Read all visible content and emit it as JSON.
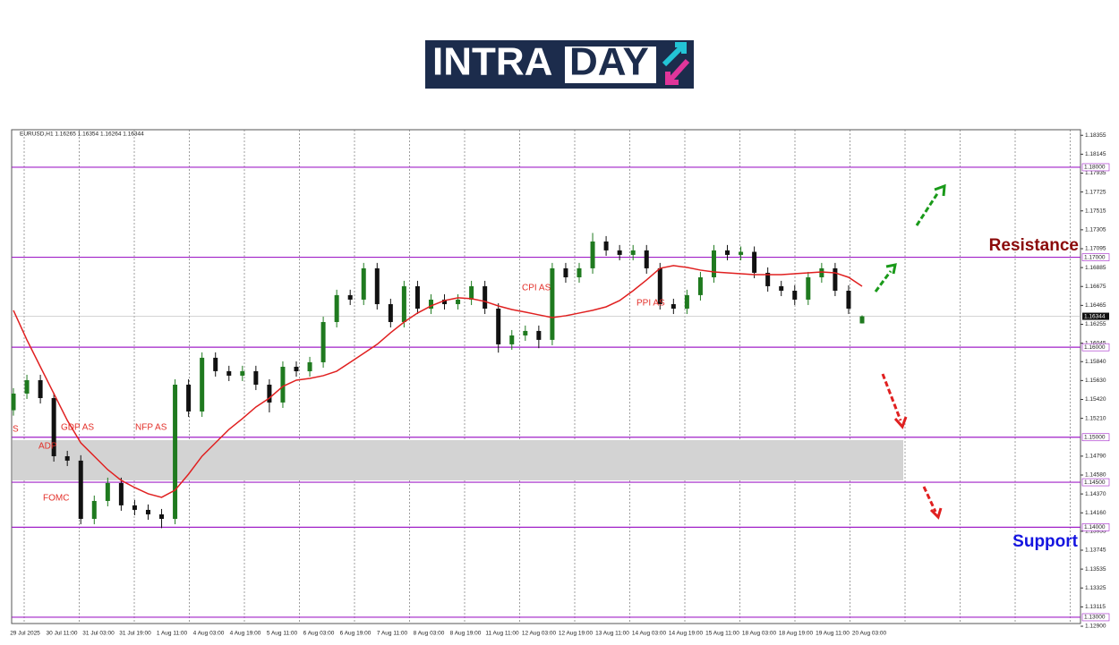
{
  "logo": {
    "left": "INTRA",
    "right": "DAY"
  },
  "chart_data": {
    "type": "candlestick",
    "header": "EURUSD,H1  1.16265 1.16354 1.16264 1.16344",
    "ylim": [
      1.1293,
      1.18417
    ],
    "yticks": [
      1.18355,
      1.18145,
      1.17935,
      1.17725,
      1.17515,
      1.17305,
      1.17095,
      1.16885,
      1.16675,
      1.16465,
      1.16255,
      1.16045,
      {
        "value": 1.1584,
        "label": "1.15840"
      },
      {
        "value": 1.1563,
        "label": "1.15630"
      },
      {
        "value": 1.1542,
        "label": "1.15420"
      },
      {
        "value": 1.1521,
        "label": "1.15210"
      },
      {
        "value": 1.1479,
        "label": "1.14790"
      },
      {
        "value": 1.1458,
        "label": "1.14580"
      },
      {
        "value": 1.1437,
        "label": "1.14370"
      },
      {
        "value": 1.1416,
        "label": "1.14160"
      },
      1.13955,
      1.13745,
      1.13535,
      1.13325,
      1.13115,
      {
        "value": 1.129,
        "label": "1.12900"
      }
    ],
    "levels": [
      {
        "value": 1.18,
        "label": "1.18000"
      },
      {
        "value": 1.17,
        "label": "1.17000"
      },
      {
        "value": 1.16,
        "label": "1.16000"
      },
      {
        "value": 1.15,
        "label": "1.15000"
      },
      {
        "value": 1.145,
        "label": "1.14500"
      },
      {
        "value": 1.14,
        "label": "1.14000"
      },
      {
        "value": 1.13,
        "label": "1.13000"
      }
    ],
    "level_color": "#a020c8",
    "current_price": 1.16344,
    "zone": [
      1.14521,
      1.14968
    ],
    "bull_color": "#1f7a1f",
    "bear_color": "#111111",
    "ohlc": [
      [
        1.153,
        1.15545,
        1.1524,
        1.15485
      ],
      [
        1.15485,
        1.15694,
        1.15425,
        1.15634
      ],
      [
        1.15634,
        1.15694,
        1.15375,
        1.15435
      ],
      [
        1.15435,
        1.15495,
        1.14729,
        1.14789
      ],
      [
        1.14789,
        1.14849,
        1.1468,
        1.1474
      ],
      [
        1.1474,
        1.148,
        1.14033,
        1.14093
      ],
      [
        1.14093,
        1.14352,
        1.14033,
        1.14292
      ],
      [
        1.14292,
        1.14551,
        1.14232,
        1.14491
      ],
      [
        1.14491,
        1.14551,
        1.14183,
        1.14243
      ],
      [
        1.14243,
        1.14303,
        1.14133,
        1.14193
      ],
      [
        1.14193,
        1.14253,
        1.14083,
        1.14143
      ],
      [
        1.14143,
        1.14203,
        1.1399,
        1.14093
      ],
      [
        1.14093,
        1.15644,
        1.14033,
        1.15584
      ],
      [
        1.15584,
        1.15644,
        1.15226,
        1.15286
      ],
      [
        1.15286,
        1.15943,
        1.15226,
        1.15883
      ],
      [
        1.15883,
        1.15943,
        1.15674,
        1.15734
      ],
      [
        1.15734,
        1.15794,
        1.15624,
        1.15684
      ],
      [
        1.15684,
        1.15794,
        1.15624,
        1.15734
      ],
      [
        1.15734,
        1.15794,
        1.15524,
        1.15584
      ],
      [
        1.15584,
        1.15644,
        1.15276,
        1.15386
      ],
      [
        1.15386,
        1.15843,
        1.15326,
        1.15783
      ],
      [
        1.15783,
        1.15843,
        1.15673,
        1.15733
      ],
      [
        1.15733,
        1.15893,
        1.15673,
        1.15833
      ],
      [
        1.15833,
        1.1634,
        1.15773,
        1.1628
      ],
      [
        1.1628,
        1.16639,
        1.1622,
        1.16579
      ],
      [
        1.16579,
        1.16639,
        1.16469,
        1.16529
      ],
      [
        1.16529,
        1.16937,
        1.16469,
        1.16877
      ],
      [
        1.16877,
        1.16937,
        1.16419,
        1.16479
      ],
      [
        1.16479,
        1.16539,
        1.1622,
        1.1628
      ],
      [
        1.1628,
        1.16738,
        1.1622,
        1.16678
      ],
      [
        1.16678,
        1.16738,
        1.16369,
        1.16429
      ],
      [
        1.16429,
        1.16589,
        1.16369,
        1.16529
      ],
      [
        1.16529,
        1.16589,
        1.16419,
        1.16479
      ],
      [
        1.16479,
        1.16589,
        1.16419,
        1.16529
      ],
      [
        1.16529,
        1.16738,
        1.16469,
        1.16678
      ],
      [
        1.16678,
        1.16738,
        1.16369,
        1.16429
      ],
      [
        1.16429,
        1.16489,
        1.1594,
        1.16032
      ],
      [
        1.16032,
        1.16191,
        1.15972,
        1.16131
      ],
      [
        1.16131,
        1.16241,
        1.16071,
        1.16181
      ],
      [
        1.16181,
        1.16241,
        1.1599,
        1.16082
      ],
      [
        1.16082,
        1.16937,
        1.16022,
        1.16877
      ],
      [
        1.16877,
        1.16937,
        1.16717,
        1.16777
      ],
      [
        1.16777,
        1.16937,
        1.16717,
        1.16877
      ],
      [
        1.16877,
        1.1727,
        1.16817,
        1.17175
      ],
      [
        1.17175,
        1.17235,
        1.17016,
        1.17076
      ],
      [
        1.17076,
        1.17136,
        1.16966,
        1.17026
      ],
      [
        1.17026,
        1.17136,
        1.16966,
        1.17076
      ],
      [
        1.17076,
        1.17136,
        1.16817,
        1.16877
      ],
      [
        1.16877,
        1.16937,
        1.16419,
        1.16479
      ],
      [
        1.16479,
        1.16539,
        1.16369,
        1.16429
      ],
      [
        1.16429,
        1.16639,
        1.16369,
        1.16579
      ],
      [
        1.16579,
        1.16837,
        1.16519,
        1.16777
      ],
      [
        1.16777,
        1.17136,
        1.16717,
        1.17076
      ],
      [
        1.17076,
        1.17136,
        1.16966,
        1.17026
      ],
      [
        1.17026,
        1.1712,
        1.16966,
        1.1706
      ],
      [
        1.1706,
        1.1712,
        1.16767,
        1.16827
      ],
      [
        1.16827,
        1.16887,
        1.16618,
        1.16678
      ],
      [
        1.16678,
        1.16738,
        1.16568,
        1.16628
      ],
      [
        1.16628,
        1.16688,
        1.16469,
        1.16529
      ],
      [
        1.16529,
        1.16837,
        1.16469,
        1.16777
      ],
      [
        1.16777,
        1.16937,
        1.16717,
        1.16877
      ],
      [
        1.16877,
        1.16937,
        1.16568,
        1.16628
      ],
      [
        1.16628,
        1.16688,
        1.16369,
        1.16429
      ],
      [
        1.16265,
        1.16354,
        1.16264,
        1.16344
      ]
    ],
    "ma": {
      "color": "#e02020",
      "values": [
        1.1641,
        1.16082,
        1.15783,
        1.15485,
        1.15187,
        1.14938,
        1.14789,
        1.1464,
        1.14521,
        1.14441,
        1.14372,
        1.14332,
        1.14412,
        1.1459,
        1.14789,
        1.14938,
        1.15087,
        1.15207,
        1.15336,
        1.15435,
        1.15565,
        1.15634,
        1.15654,
        1.15684,
        1.15734,
        1.15833,
        1.15932,
        1.16032,
        1.16161,
        1.1628,
        1.1638,
        1.16459,
        1.16519,
        1.16549,
        1.16539,
        1.16509,
        1.16459,
        1.16419,
        1.1639,
        1.1636,
        1.1633,
        1.1635,
        1.1638,
        1.1641,
        1.16449,
        1.16519,
        1.16628,
        1.16748,
        1.16877,
        1.16907,
        1.16887,
        1.16857,
        1.16837,
        1.16827,
        1.16817,
        1.16807,
        1.16807,
        1.16807,
        1.16817,
        1.16827,
        1.16837,
        1.16827,
        1.16777,
        1.16678
      ]
    },
    "xtick_labels": [
      "29 Jul 2025",
      "30 Jul 11:00",
      "31 Jul 03:00",
      "31 Jul 19:00",
      "1 Aug 11:00",
      "4 Aug 03:00",
      "4 Aug 19:00",
      "5 Aug 11:00",
      "6 Aug 03:00",
      "6 Aug 19:00",
      "7 Aug 11:00",
      "8 Aug 03:00",
      "8 Aug 19:00",
      "11 Aug 11:00",
      "12 Aug 03:00",
      "12 Aug 19:00",
      "13 Aug 11:00",
      "14 Aug 03:00",
      "14 Aug 19:00",
      "15 Aug 11:00",
      "18 Aug 03:00",
      "18 Aug 19:00",
      "19 Aug 11:00",
      "20 Aug 03:00"
    ],
    "annotations": [
      "S",
      "GDP AS",
      "ADP",
      "FOMC",
      "NFP AS",
      "CPI AS",
      "PPI AS"
    ],
    "resistance": "Resistance",
    "support": "Support"
  }
}
